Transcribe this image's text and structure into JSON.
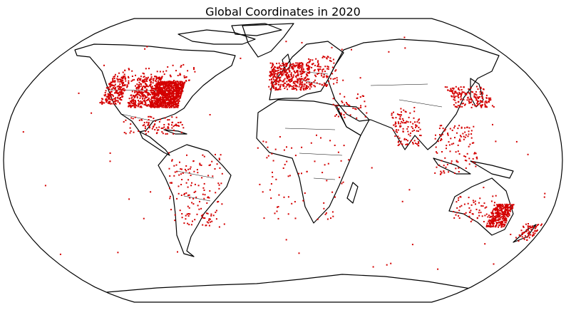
{
  "title": "Global Coordinates in 2020",
  "chart_data": {
    "type": "scatter",
    "projection": "robinson",
    "title": "Global Coordinates in 2020",
    "point_color": "#d40000",
    "coastline_color": "#000000",
    "clusters": [
      {
        "region": "Eastern United States",
        "lon": [
          -90,
          -70
        ],
        "lat": [
          30,
          45
        ],
        "n": 900
      },
      {
        "region": "Central United States",
        "lon": [
          -105,
          -88
        ],
        "lat": [
          30,
          48
        ],
        "n": 300
      },
      {
        "region": "Western United States",
        "lon": [
          -124,
          -110
        ],
        "lat": [
          32,
          48
        ],
        "n": 220
      },
      {
        "region": "Canada",
        "lon": [
          -125,
          -65
        ],
        "lat": [
          45,
          55
        ],
        "n": 60
      },
      {
        "region": "Mexico and Caribbean",
        "lon": [
          -105,
          -65
        ],
        "lat": [
          15,
          25
        ],
        "n": 90
      },
      {
        "region": "South America",
        "lon": [
          -75,
          -40
        ],
        "lat": [
          -38,
          5
        ],
        "n": 150
      },
      {
        "region": "Western Europe",
        "lon": [
          -10,
          20
        ],
        "lat": [
          40,
          56
        ],
        "n": 420
      },
      {
        "region": "Eastern Europe",
        "lon": [
          20,
          40
        ],
        "lat": [
          42,
          60
        ],
        "n": 90
      },
      {
        "region": "Africa",
        "lon": [
          -17,
          40
        ],
        "lat": [
          -34,
          15
        ],
        "n": 70
      },
      {
        "region": "Middle East",
        "lon": [
          34,
          56
        ],
        "lat": [
          24,
          38
        ],
        "n": 40
      },
      {
        "region": "India",
        "lon": [
          72,
          90
        ],
        "lat": [
          8,
          30
        ],
        "n": 110
      },
      {
        "region": "Southeast Asia",
        "lon": [
          98,
          125
        ],
        "lat": [
          -8,
          20
        ],
        "n": 110
      },
      {
        "region": "East Asia",
        "lon": [
          115,
          142
        ],
        "lat": [
          30,
          42
        ],
        "n": 170
      },
      {
        "region": "Eastern Australia",
        "lon": [
          140,
          153
        ],
        "lat": [
          -38,
          -25
        ],
        "n": 320
      },
      {
        "region": "Western Australia",
        "lon": [
          114,
          140
        ],
        "lat": [
          -35,
          -20
        ],
        "n": 60
      },
      {
        "region": "New Zealand",
        "lon": [
          166,
          178
        ],
        "lat": [
          -46,
          -36
        ],
        "n": 60
      },
      {
        "region": "Oceans and remote islands",
        "lon": [
          -180,
          180
        ],
        "lat": [
          -70,
          80
        ],
        "n": 60
      }
    ]
  }
}
